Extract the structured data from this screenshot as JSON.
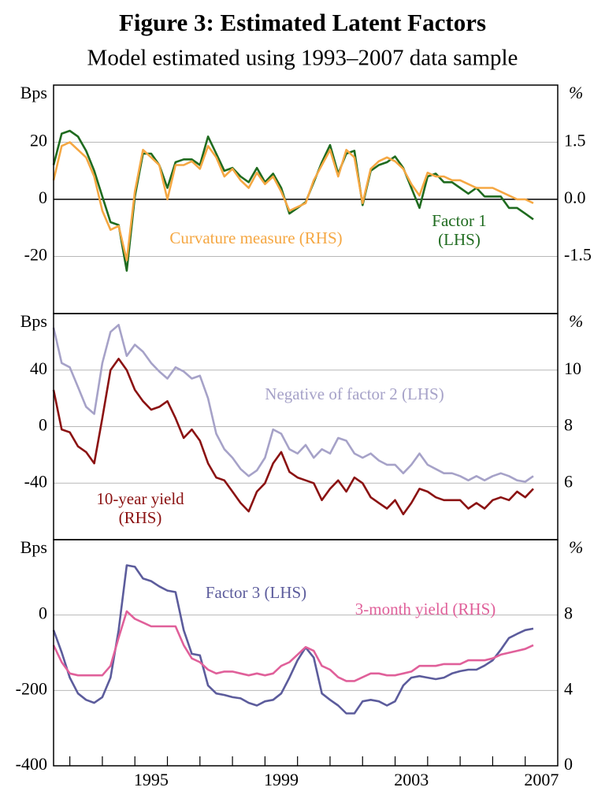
{
  "title": "Figure 3: Estimated Latent Factors",
  "subtitle": "Model estimated using 1993–2007 data sample",
  "chart_data": [
    {
      "type": "line",
      "y_unit": "Bps",
      "y2_unit": "%",
      "xlim": [
        1992.5,
        2008
      ],
      "ylim": [
        -40,
        40
      ],
      "yticks": [
        -20,
        0,
        20
      ],
      "y2lim": [
        -3,
        3
      ],
      "y2ticks": [
        -1.5,
        {
          "value": 0,
          "label": "0.0"
        },
        1.5
      ],
      "grid": true,
      "zero_line": true,
      "x": [
        1992.5,
        1992.75,
        1993,
        1993.25,
        1993.5,
        1993.75,
        1994,
        1994.25,
        1994.5,
        1994.75,
        1995,
        1995.25,
        1995.5,
        1995.75,
        1996,
        1996.25,
        1996.5,
        1996.75,
        1997,
        1997.25,
        1997.5,
        1997.75,
        1998,
        1998.25,
        1998.5,
        1998.75,
        1999,
        1999.25,
        1999.5,
        1999.75,
        2000,
        2000.25,
        2000.5,
        2000.75,
        2001,
        2001.25,
        2001.5,
        2001.75,
        2002,
        2002.25,
        2002.5,
        2002.75,
        2003,
        2003.25,
        2003.5,
        2003.75,
        2004,
        2004.25,
        2004.5,
        2004.75,
        2005,
        2005.25,
        2005.5,
        2005.75,
        2006,
        2006.25,
        2006.5,
        2006.75,
        2007,
        2007.25
      ],
      "series": [
        {
          "name": "Factor 1\n(LHS)",
          "color": "#1f6b1f",
          "axis": "y",
          "values": [
            12,
            23,
            24,
            22,
            17,
            10,
            1,
            -8,
            -9,
            -25,
            1,
            16,
            16,
            12,
            4,
            13,
            14,
            14,
            12,
            22,
            16,
            10,
            11,
            8,
            6,
            11,
            6,
            9,
            4,
            -5,
            -3,
            -1,
            6,
            13,
            19,
            9,
            16,
            17,
            -2,
            10,
            12,
            13,
            15,
            11,
            4,
            -3,
            8,
            9,
            6,
            6,
            4,
            2,
            4,
            1,
            1,
            1,
            -3,
            -3,
            -5,
            -7
          ]
        },
        {
          "name": "Curvature measure (RHS)",
          "color": "#f5a742",
          "axis": "y2",
          "values": [
            0.5,
            1.4,
            1.5,
            1.3,
            1.1,
            0.6,
            -0.3,
            -0.8,
            -0.7,
            -1.6,
            0.2,
            1.3,
            1.1,
            0.9,
            0.0,
            0.9,
            0.9,
            1.0,
            0.8,
            1.4,
            1.1,
            0.6,
            0.8,
            0.5,
            0.3,
            0.7,
            0.4,
            0.6,
            0.2,
            -0.3,
            -0.2,
            -0.1,
            0.5,
            0.9,
            1.3,
            0.6,
            1.3,
            1.1,
            -0.1,
            0.8,
            1.0,
            1.1,
            1.0,
            0.8,
            0.4,
            0.1,
            0.7,
            0.6,
            0.6,
            0.5,
            0.5,
            0.4,
            0.3,
            0.3,
            0.3,
            0.2,
            0.1,
            0.0,
            0.0,
            -0.1
          ]
        }
      ]
    },
    {
      "type": "line",
      "y_unit": "Bps",
      "y2_unit": "%",
      "xlim": [
        1992.5,
        2008
      ],
      "ylim": [
        -80,
        80
      ],
      "yticks": [
        -40,
        0,
        40
      ],
      "y2lim": [
        4,
        12
      ],
      "y2ticks": [
        6,
        8,
        10
      ],
      "grid": true,
      "x": [
        1992.5,
        1992.75,
        1993,
        1993.25,
        1993.5,
        1993.75,
        1994,
        1994.25,
        1994.5,
        1994.75,
        1995,
        1995.25,
        1995.5,
        1995.75,
        1996,
        1996.25,
        1996.5,
        1996.75,
        1997,
        1997.25,
        1997.5,
        1997.75,
        1998,
        1998.25,
        1998.5,
        1998.75,
        1999,
        1999.25,
        1999.5,
        1999.75,
        2000,
        2000.25,
        2000.5,
        2000.75,
        2001,
        2001.25,
        2001.5,
        2001.75,
        2002,
        2002.25,
        2002.5,
        2002.75,
        2003,
        2003.25,
        2003.5,
        2003.75,
        2004,
        2004.25,
        2004.5,
        2004.75,
        2005,
        2005.25,
        2005.5,
        2005.75,
        2006,
        2006.25,
        2006.5,
        2006.75,
        2007,
        2007.25
      ],
      "series": [
        {
          "name": "Negative of factor 2 (LHS)",
          "color": "#a6a2c8",
          "axis": "y",
          "values": [
            70,
            45,
            42,
            28,
            14,
            9,
            45,
            67,
            72,
            50,
            58,
            53,
            45,
            39,
            34,
            42,
            39,
            34,
            36,
            20,
            -5,
            -16,
            -22,
            -30,
            -35,
            -31,
            -22,
            -2,
            -5,
            -16,
            -19,
            -13,
            -22,
            -16,
            -19,
            -8,
            -10,
            -19,
            -22,
            -19,
            -24,
            -27,
            -27,
            -33,
            -27,
            -19,
            -27,
            -30,
            -33,
            -33,
            -35,
            -38,
            -35,
            -38,
            -35,
            -33,
            -35,
            -38,
            -39,
            -35
          ]
        },
        {
          "name": "10-year yield\n(RHS)",
          "color": "#8b1212",
          "axis": "y2",
          "values": [
            9.3,
            7.9,
            7.8,
            7.3,
            7.1,
            6.7,
            8.3,
            10.0,
            10.4,
            10.0,
            9.3,
            8.9,
            8.6,
            8.7,
            8.9,
            8.3,
            7.6,
            7.9,
            7.5,
            6.7,
            6.2,
            6.1,
            5.7,
            5.3,
            5.0,
            5.7,
            6.0,
            6.7,
            7.1,
            6.4,
            6.2,
            6.1,
            6.0,
            5.4,
            5.8,
            6.1,
            5.7,
            6.2,
            6.0,
            5.5,
            5.3,
            5.1,
            5.4,
            4.9,
            5.3,
            5.8,
            5.7,
            5.5,
            5.4,
            5.4,
            5.4,
            5.1,
            5.3,
            5.1,
            5.4,
            5.5,
            5.4,
            5.7,
            5.5,
            5.8
          ]
        }
      ]
    },
    {
      "type": "line",
      "y_unit": "Bps",
      "y2_unit": "%",
      "xlim": [
        1992.5,
        2008
      ],
      "ylim": [
        -400,
        200
      ],
      "yticks": [
        -400,
        -200,
        0
      ],
      "y2lim": [
        0,
        12
      ],
      "y2ticks": [
        0,
        4,
        8
      ],
      "grid": true,
      "xticks": [
        1995,
        1999,
        2003,
        2007
      ],
      "xminorticks": [
        1993,
        1994,
        1996,
        1997,
        1998,
        2000,
        2001,
        2002,
        2004,
        2005,
        2006
      ],
      "x": [
        1992.5,
        1992.75,
        1993,
        1993.25,
        1993.5,
        1993.75,
        1994,
        1994.25,
        1994.5,
        1994.75,
        1995,
        1995.25,
        1995.5,
        1995.75,
        1996,
        1996.25,
        1996.5,
        1996.75,
        1997,
        1997.25,
        1997.5,
        1997.75,
        1998,
        1998.25,
        1998.5,
        1998.75,
        1999,
        1999.25,
        1999.5,
        1999.75,
        2000,
        2000.25,
        2000.5,
        2000.75,
        2001,
        2001.25,
        2001.5,
        2001.75,
        2002,
        2002.25,
        2002.5,
        2002.75,
        2003,
        2003.25,
        2003.5,
        2003.75,
        2004,
        2004.25,
        2004.5,
        2004.75,
        2005,
        2005.25,
        2005.5,
        2005.75,
        2006,
        2006.25,
        2006.5,
        2006.75,
        2007,
        2007.25
      ],
      "series": [
        {
          "name": "Factor 3 (LHS)",
          "color": "#5c5c9c",
          "axis": "y",
          "values": [
            -40,
            -99,
            -166,
            -208,
            -225,
            -233,
            -218,
            -166,
            -40,
            132,
            128,
            97,
            90,
            76,
            65,
            61,
            -40,
            -103,
            -107,
            -187,
            -208,
            -212,
            -218,
            -221,
            -233,
            -240,
            -229,
            -225,
            -208,
            -166,
            -120,
            -86,
            -113,
            -208,
            -225,
            -240,
            -261,
            -261,
            -229,
            -225,
            -229,
            -240,
            -229,
            -187,
            -166,
            -162,
            -166,
            -170,
            -166,
            -155,
            -149,
            -145,
            -145,
            -134,
            -120,
            -92,
            -61,
            -50,
            -40,
            -36
          ]
        },
        {
          "name": "3-month yield (RHS)",
          "color": "#e0609a",
          "axis": "y2",
          "values": [
            6.4,
            5.5,
            4.9,
            4.8,
            4.8,
            4.8,
            4.8,
            5.3,
            6.8,
            8.2,
            7.8,
            7.6,
            7.4,
            7.4,
            7.4,
            7.4,
            6.4,
            5.7,
            5.5,
            5.1,
            4.9,
            5.0,
            5.0,
            4.9,
            4.8,
            4.9,
            4.8,
            4.9,
            5.3,
            5.5,
            5.9,
            6.3,
            6.1,
            5.3,
            5.1,
            4.7,
            4.5,
            4.5,
            4.7,
            4.9,
            4.9,
            4.8,
            4.8,
            4.9,
            5.0,
            5.3,
            5.3,
            5.3,
            5.4,
            5.4,
            5.4,
            5.6,
            5.6,
            5.6,
            5.7,
            5.9,
            6.0,
            6.1,
            6.2,
            6.4
          ]
        }
      ]
    }
  ]
}
